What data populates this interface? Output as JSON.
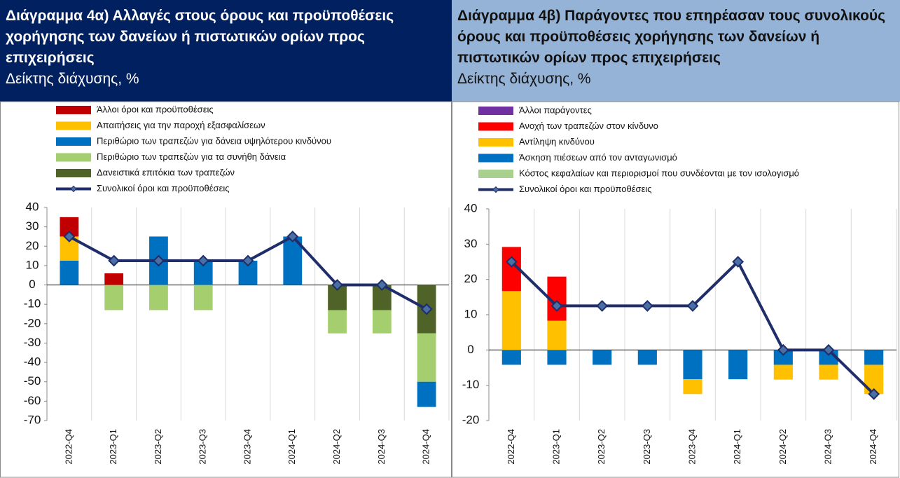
{
  "chart_data": [
    {
      "type": "bar",
      "title": "Διάγραμμα 4α) Αλλαγές στους όρους και προϋποθέσεις χορήγησης των δανείων ή πιστωτικών ορίων προς επιχειρήσεις",
      "subtitle": "Δείκτης διάχυσης, %",
      "categories": [
        "2022-Q4",
        "2023-Q1",
        "2023-Q2",
        "2023-Q3",
        "2023-Q4",
        "2024-Q1",
        "2024-Q2",
        "2024-Q3",
        "2024-Q4"
      ],
      "series": [
        {
          "name": "Άλλοι όροι και προϋποθέσεις",
          "color": "#c00000",
          "values": [
            10,
            6,
            0,
            0,
            0,
            0,
            0,
            0,
            0
          ]
        },
        {
          "name": "Απαιτήσεις για την παροχή εξασφαλίσεων",
          "color": "#ffc000",
          "values": [
            12.5,
            0,
            0,
            0,
            0,
            0,
            0,
            0,
            0
          ]
        },
        {
          "name": "Περιθώριο των τραπεζών για δάνεια υψηλότερου κινδύνου",
          "color": "#0070c0",
          "values": [
            12.5,
            0,
            25,
            12.5,
            12.5,
            25,
            0,
            0,
            -13
          ]
        },
        {
          "name": "Περιθώριο των τραπεζών για τα συνήθη δάνεια",
          "color": "#a5cf6e",
          "values": [
            0,
            -13,
            -13,
            -13,
            0,
            0,
            -12,
            -12,
            -25
          ]
        },
        {
          "name": "Δανειστικά επιτόκια των τραπεζών",
          "color": "#4f6228",
          "values": [
            0,
            0,
            0,
            0,
            0,
            0,
            -13,
            -13,
            -25
          ]
        },
        {
          "name": "Συνολικοί όροι και προϋποθέσεις",
          "color": "#1f2d6b",
          "type": "line",
          "values": [
            25,
            12.5,
            12.5,
            12.5,
            12.5,
            25,
            0,
            0,
            -12.5
          ]
        }
      ],
      "ylim": [
        -70,
        40
      ],
      "yticks": [
        -70,
        -60,
        -50,
        -40,
        -30,
        -20,
        -10,
        0,
        10,
        20,
        30,
        40
      ]
    },
    {
      "type": "bar",
      "title": "Διάγραμμα 4β) Παράγοντες που επηρέασαν τους συνολικούς όρους και προϋποθέσεις χορήγησης των δανείων ή πιστωτικών ορίων προς επιχειρήσεις",
      "subtitle": "Δείκτης διάχυσης, %",
      "categories": [
        "2022-Q4",
        "2023-Q1",
        "2023-Q2",
        "2023-Q3",
        "2023-Q4",
        "2024-Q1",
        "2024-Q2",
        "2024-Q3",
        "2024-Q4"
      ],
      "series": [
        {
          "name": "Άλλοι παράγοντες",
          "color": "#7030a0",
          "values": [
            0,
            0,
            0,
            0,
            0,
            0,
            0,
            0,
            0
          ]
        },
        {
          "name": "Ανοχή των τραπεζών στον κίνδυνο",
          "color": "#ff0000",
          "values": [
            12.5,
            12.5,
            0,
            0,
            0,
            0,
            0,
            0,
            0
          ]
        },
        {
          "name": "Αντίληψη κινδύνου",
          "color": "#ffc000",
          "values": [
            16.7,
            8.3,
            0,
            0,
            -4.2,
            0,
            -4.2,
            -4.2,
            -8.3
          ]
        },
        {
          "name": "Άσκηση πιέσεων από τον ανταγωνισμό",
          "color": "#0070c0",
          "values": [
            -4.2,
            -4.2,
            -4.2,
            -4.2,
            -8.3,
            -8.3,
            -4.2,
            -4.2,
            -4.2
          ]
        },
        {
          "name": "Κόστος κεφαλαίων και περιορισμοί που συνδέονται με τον ισολογισμό",
          "color": "#a9d08e",
          "values": [
            0,
            0,
            0,
            0,
            0,
            0,
            0,
            0,
            0
          ]
        },
        {
          "name": "Συνολικοί όροι και προϋποθέσεις",
          "color": "#1f2d6b",
          "type": "line",
          "values": [
            25,
            12.5,
            12.5,
            12.5,
            12.5,
            25,
            0,
            0,
            -12.5
          ]
        }
      ],
      "ylim": [
        -20,
        40
      ],
      "yticks": [
        -20,
        -10,
        0,
        10,
        20,
        30,
        40
      ]
    }
  ]
}
